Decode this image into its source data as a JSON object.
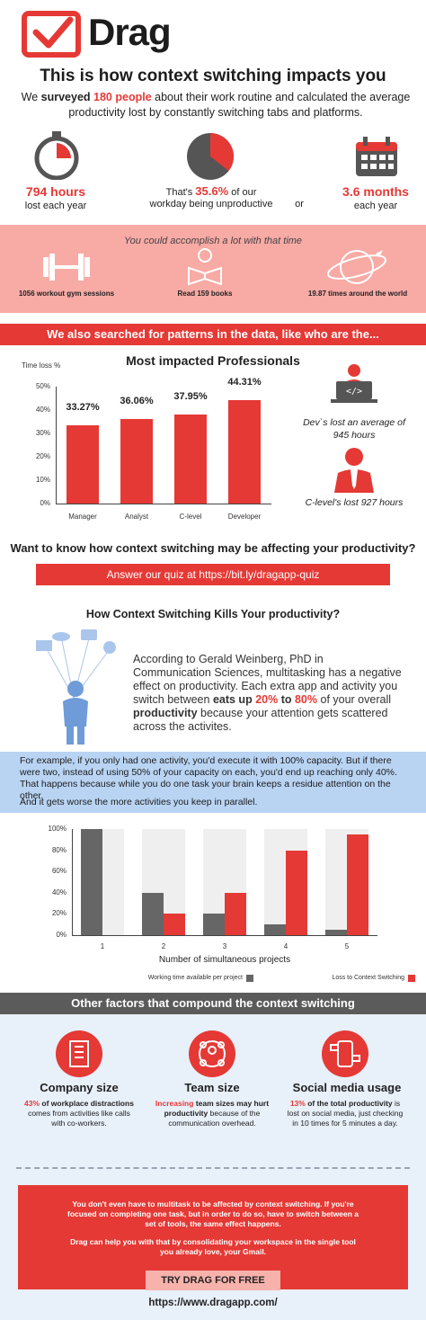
{
  "brand": {
    "name": "Drag"
  },
  "header": {
    "title": "This is how context switching impacts you",
    "subtitle_pre": "We ",
    "subtitle_bold": "surveyed ",
    "subtitle_red": "180 people",
    "subtitle_post": " about their work routine and calculated the average productivity lost by constantly switching tabs and platforms."
  },
  "stats": {
    "hours_value": "794 hours",
    "hours_label": "lost each year",
    "pct_pre": "That's ",
    "pct_value": "35.6%",
    "pct_post": " of our",
    "pct_label": "workday being unproductive",
    "or": "or",
    "months_value": "3.6 months",
    "months_label": "each year",
    "pie_fraction": 0.356
  },
  "accomplish": {
    "intro": "You could accomplish a lot with that time",
    "items": [
      {
        "label": "1056 workout gym sessions",
        "icon": "dumbbell-icon"
      },
      {
        "label": "Read 159 books",
        "icon": "book-reader-icon"
      },
      {
        "label": "19.87 times around the world",
        "icon": "globe-plane-icon"
      }
    ]
  },
  "patterns": {
    "banner": "We also searched for patterns in the data, like who are the..."
  },
  "professionals": {
    "title": "Most impacted Professionals",
    "dev_note": "Dev`s lost an average of 945 hours",
    "clevel_note": "C-level's lost 927 hours"
  },
  "chart_data": [
    {
      "type": "bar",
      "title": "Most impacted Professionals",
      "ylabel": "Time loss %",
      "categories": [
        "Manager",
        "Analyst",
        "C-level",
        "Developer"
      ],
      "values": [
        33.27,
        36.06,
        37.95,
        44.31
      ],
      "value_labels": [
        "33.27%",
        "36.06%",
        "37.95%",
        "44.31%"
      ],
      "yticks": [
        "0%",
        "10%",
        "20%",
        "30%",
        "40%",
        "50%"
      ],
      "ylim": [
        0,
        50
      ],
      "color": "#e53935"
    },
    {
      "type": "bar",
      "xlabel": "Number of simultaneous projects",
      "categories": [
        "1",
        "2",
        "3",
        "4",
        "5"
      ],
      "yticks": [
        "0%",
        "20%",
        "40%",
        "60%",
        "80%",
        "100%"
      ],
      "ylim": [
        0,
        100
      ],
      "series": [
        {
          "name": "Working time available per project",
          "values": [
            100,
            40,
            20,
            10,
            5
          ],
          "color": "#666666"
        },
        {
          "name": "Loss to Context Switching",
          "values": [
            0,
            20,
            40,
            80,
            95
          ],
          "color": "#e53935"
        }
      ],
      "legend": "bottom"
    }
  ],
  "quiz": {
    "question": "Want to know how context switching may be affecting your productivity?",
    "button_label": "Answer our quiz at https://bit.ly/dragapp-quiz"
  },
  "kills": {
    "title": "How Context Switching Kills Your productivity?",
    "p1": "According to Gerald Weinberg, PhD in Communication Sciences, multitasking has a negative effect on productivity. Each extra app and activity you switch between ",
    "p_bold1": "eats up ",
    "p_red1": "20%",
    "p_bold2": " to",
    "p_red2": "80%",
    "p2": " of your overall ",
    "p_bold3": "productivity",
    "p3": " because your attention gets scattered across the activites."
  },
  "example": {
    "p1": "For example, if you only had one activity, you'd execute it with 100% capacity. But if there were two, instead of using 50% of your capacity on each, you'd end up reaching only 40%. That happens because while you do one task your brain keeps a residue attention on the other.",
    "p2": "And it gets worse the more activities you keep in parallel."
  },
  "factors": {
    "banner": "Other factors that compound the context switching",
    "items": [
      {
        "title": "Company size",
        "red": "43%",
        "bold": " of workplace distractions",
        "text": " comes from activities like calls with co-workers.",
        "icon": "building-icon"
      },
      {
        "title": "Team size",
        "red": "Increasing",
        "bold": " team sizes may hurt productivity",
        "text": " because of the communication overhead.",
        "icon": "team-icon"
      },
      {
        "title": "Social media usage",
        "red": "13%",
        "bold": " of the total productivity",
        "text": " is lost on social media, just checking in 10 times for 5 minutes a day.",
        "icon": "social-media-icon"
      }
    ]
  },
  "cta": {
    "p1": "You don't even have to multitask to be affected by context switching. If you're focused on completing one task, but in order to do so, have to switch between a set of tools, the same effect happens.",
    "p2": "Drag can help you with that by consolidating your workspace in the single tool you already love, your Gmail.",
    "button": "TRY DRAG FOR FREE",
    "url": "https://www.dragapp.com/"
  }
}
